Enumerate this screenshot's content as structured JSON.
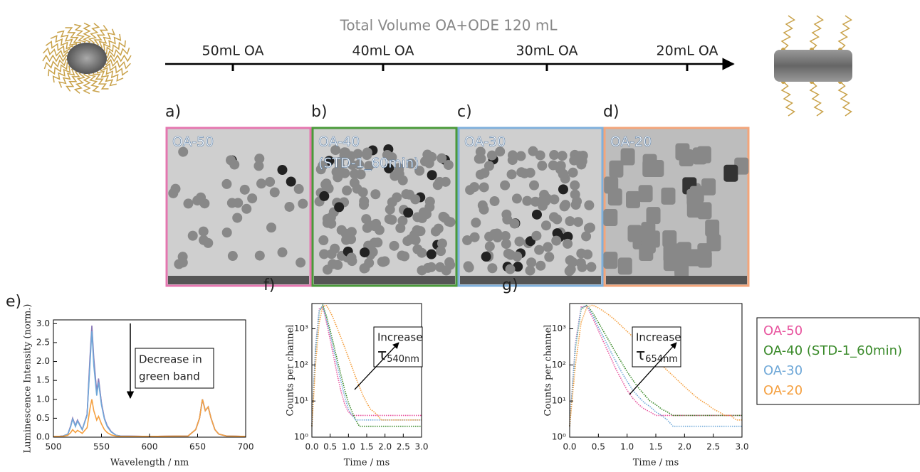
{
  "schematic": {
    "title": "Total Volume OA+ODE 120 mL",
    "steps": [
      "50mL OA",
      "40mL OA",
      "30mL OA",
      "20mL OA"
    ]
  },
  "panels": [
    {
      "letter": "a)",
      "label": "OA-50"
    },
    {
      "letter": "b)",
      "label": "OA-40",
      "label2": "(STD-1_60min)"
    },
    {
      "letter": "c)",
      "label": "OA-30"
    },
    {
      "letter": "d)",
      "label": "OA-20"
    }
  ],
  "chart_data": [
    {
      "type": "line",
      "letter": "e)",
      "ylabel": "Luminescence Intensity (norm.)",
      "xlabel": "Wavelength / nm",
      "annotation": [
        "Decrease in",
        "green band"
      ],
      "x": [
        500,
        505,
        510,
        515,
        518,
        520,
        523,
        525,
        527,
        530,
        535,
        538,
        540,
        542,
        545,
        547,
        550,
        553,
        556,
        560,
        565,
        570,
        600,
        640,
        648,
        652,
        655,
        658,
        661,
        664,
        668,
        672,
        680,
        700
      ],
      "series": [
        {
          "name": "OA-50",
          "color": "#e8559f",
          "values": [
            0.02,
            0.02,
            0.03,
            0.08,
            0.3,
            0.5,
            0.3,
            0.45,
            0.35,
            0.2,
            0.6,
            2.0,
            2.9,
            2.0,
            1.2,
            1.5,
            0.9,
            0.5,
            0.3,
            0.15,
            0.05,
            0.03,
            0.02,
            0.03,
            0.2,
            0.5,
            1.0,
            0.7,
            0.8,
            0.5,
            0.2,
            0.08,
            0.03,
            0.02
          ]
        },
        {
          "name": "OA-40 (STD-1_60min)",
          "color": "#8a7ab8",
          "values": [
            0.02,
            0.02,
            0.03,
            0.08,
            0.3,
            0.5,
            0.3,
            0.45,
            0.35,
            0.2,
            0.6,
            2.1,
            2.95,
            2.1,
            1.2,
            1.55,
            0.9,
            0.5,
            0.3,
            0.15,
            0.05,
            0.03,
            0.02,
            0.03,
            0.2,
            0.5,
            1.0,
            0.7,
            0.8,
            0.5,
            0.2,
            0.08,
            0.03,
            0.02
          ]
        },
        {
          "name": "OA-30",
          "color": "#6fa8d8",
          "values": [
            0.02,
            0.02,
            0.03,
            0.08,
            0.28,
            0.48,
            0.28,
            0.43,
            0.33,
            0.2,
            0.58,
            1.9,
            2.8,
            1.9,
            1.1,
            1.45,
            0.85,
            0.48,
            0.28,
            0.14,
            0.05,
            0.03,
            0.02,
            0.03,
            0.2,
            0.5,
            1.0,
            0.7,
            0.8,
            0.5,
            0.2,
            0.08,
            0.03,
            0.02
          ]
        },
        {
          "name": "OA-20",
          "color": "#f5a040",
          "values": [
            0.02,
            0.02,
            0.02,
            0.05,
            0.12,
            0.2,
            0.12,
            0.18,
            0.15,
            0.1,
            0.25,
            0.75,
            1.0,
            0.7,
            0.45,
            0.55,
            0.35,
            0.2,
            0.12,
            0.06,
            0.03,
            0.02,
            0.02,
            0.03,
            0.2,
            0.5,
            1.0,
            0.7,
            0.8,
            0.5,
            0.2,
            0.08,
            0.03,
            0.02
          ]
        }
      ],
      "xlim": [
        500,
        700
      ],
      "ylim": [
        0,
        3.1
      ],
      "xticks": [
        500,
        550,
        600,
        650,
        700
      ],
      "yticks": [
        {
          "value": 0,
          "label": "0.0"
        },
        0.5,
        {
          "value": 1,
          "label": "1.0"
        },
        1.5,
        {
          "value": 2,
          "label": "2.0"
        },
        2.5,
        {
          "value": 3,
          "label": "3.0"
        }
      ],
      "log_y": false
    },
    {
      "type": "line",
      "letter": "f)",
      "ylabel": "Counts per channel",
      "xlabel": "Time / ms",
      "annotation": [
        "Increase",
        "τ",
        "540nm"
      ],
      "x": [
        0,
        0.1,
        0.2,
        0.3,
        0.4,
        0.5,
        0.6,
        0.7,
        0.8,
        0.9,
        1.0,
        1.1,
        1.2,
        1.3,
        1.4,
        1.5,
        1.6,
        1.7,
        1.8,
        1.9,
        2.0,
        2.1,
        2.2,
        2.3,
        2.4,
        2.5,
        2.6,
        2.7,
        2.8,
        2.9,
        3.0
      ],
      "series": [
        {
          "name": "OA-50",
          "color": "#e8559f",
          "values": [
            2,
            300,
            3500,
            4000,
            1500,
            500,
            160,
            50,
            18,
            8,
            5,
            4,
            4,
            4,
            4,
            4,
            4,
            4,
            4,
            4,
            4,
            4,
            4,
            4,
            4,
            4,
            4,
            4,
            4,
            4,
            4
          ]
        },
        {
          "name": "OA-40 (STD-1_60min)",
          "color": "#3a8a2a",
          "values": [
            2,
            250,
            3000,
            4500,
            2200,
            900,
            350,
            130,
            50,
            20,
            9,
            5,
            3,
            2,
            2,
            2,
            2,
            2,
            2,
            2,
            2,
            2,
            2,
            2,
            2,
            2,
            2,
            2,
            2,
            2,
            2
          ]
        },
        {
          "name": "OA-30",
          "color": "#6fa8d8",
          "values": [
            2,
            280,
            3300,
            4300,
            1800,
            700,
            250,
            90,
            33,
            13,
            6,
            4,
            3,
            3,
            3,
            3,
            3,
            3,
            3,
            3,
            3,
            3,
            3,
            3,
            3,
            3,
            3,
            3,
            3,
            3,
            3
          ]
        },
        {
          "name": "OA-20",
          "color": "#f5a040",
          "values": [
            2,
            100,
            1500,
            4200,
            4400,
            3000,
            1800,
            1000,
            550,
            300,
            160,
            85,
            45,
            25,
            14,
            9,
            6,
            5,
            4,
            3,
            3,
            3,
            3,
            3,
            3,
            3,
            3,
            3,
            3,
            3,
            3
          ]
        }
      ],
      "xlim": [
        0,
        3
      ],
      "ylim": [
        1,
        5000
      ],
      "xticks": [
        {
          "value": 0,
          "label": "0.0"
        },
        0.5,
        {
          "value": 1,
          "label": "1.0"
        },
        1.5,
        {
          "value": 2,
          "label": "2.0"
        },
        2.5,
        {
          "value": 3,
          "label": "3.0"
        }
      ],
      "yticks": [
        {
          "value": 1,
          "label": "10⁰"
        },
        {
          "value": 10,
          "label": "10¹"
        },
        {
          "value": 100,
          "label": "10²"
        },
        {
          "value": 1000,
          "label": "10³"
        }
      ],
      "log_y": true
    },
    {
      "type": "line",
      "letter": "g)",
      "ylabel": "Counts per channel",
      "xlabel": "Time / ms",
      "annotation": [
        "Increase",
        "τ",
        "654nm"
      ],
      "x": [
        0,
        0.1,
        0.2,
        0.3,
        0.4,
        0.5,
        0.6,
        0.7,
        0.8,
        0.9,
        1.0,
        1.1,
        1.2,
        1.3,
        1.4,
        1.5,
        1.6,
        1.7,
        1.8,
        1.9,
        2.0,
        2.1,
        2.2,
        2.3,
        2.4,
        2.5,
        2.6,
        2.7,
        2.8,
        2.9,
        3.0
      ],
      "series": [
        {
          "name": "OA-50",
          "color": "#e8559f",
          "values": [
            2,
            400,
            4000,
            4200,
            2000,
            900,
            400,
            180,
            80,
            40,
            20,
            12,
            8,
            6,
            5,
            4,
            4,
            4,
            4,
            4,
            4,
            4,
            4,
            4,
            4,
            4,
            4,
            4,
            4,
            4,
            4
          ]
        },
        {
          "name": "OA-40 (STD-1_60min)",
          "color": "#3a8a2a",
          "values": [
            2,
            300,
            3500,
            4500,
            2800,
            1500,
            800,
            420,
            220,
            120,
            65,
            38,
            23,
            15,
            10,
            8,
            6,
            5,
            4,
            4,
            4,
            4,
            4,
            4,
            4,
            4,
            4,
            4,
            4,
            4,
            4
          ]
        },
        {
          "name": "OA-30",
          "color": "#6fa8d8",
          "values": [
            2,
            350,
            3800,
            4400,
            2400,
            1100,
            550,
            260,
            130,
            65,
            35,
            20,
            13,
            9,
            7,
            5,
            4,
            3,
            2,
            2,
            2,
            2,
            2,
            2,
            2,
            2,
            2,
            2,
            2,
            2,
            2
          ]
        },
        {
          "name": "OA-20",
          "color": "#f5a040",
          "values": [
            2,
            100,
            1500,
            4000,
            4500,
            3800,
            3000,
            2300,
            1700,
            1200,
            850,
            600,
            420,
            300,
            200,
            140,
            100,
            70,
            50,
            35,
            25,
            18,
            13,
            10,
            8,
            6,
            5,
            4,
            4,
            3,
            3
          ]
        }
      ],
      "xlim": [
        0,
        3
      ],
      "ylim": [
        1,
        5000
      ],
      "xticks": [
        {
          "value": 0,
          "label": "0.0"
        },
        0.5,
        {
          "value": 1,
          "label": "1.0"
        },
        1.5,
        {
          "value": 2,
          "label": "2.0"
        },
        2.5,
        {
          "value": 3,
          "label": "3.0"
        }
      ],
      "yticks": [
        {
          "value": 1,
          "label": "10⁰"
        },
        {
          "value": 10,
          "label": "10¹"
        },
        {
          "value": 100,
          "label": "10²"
        },
        {
          "value": 1000,
          "label": "10³"
        }
      ],
      "log_y": true
    }
  ]
}
